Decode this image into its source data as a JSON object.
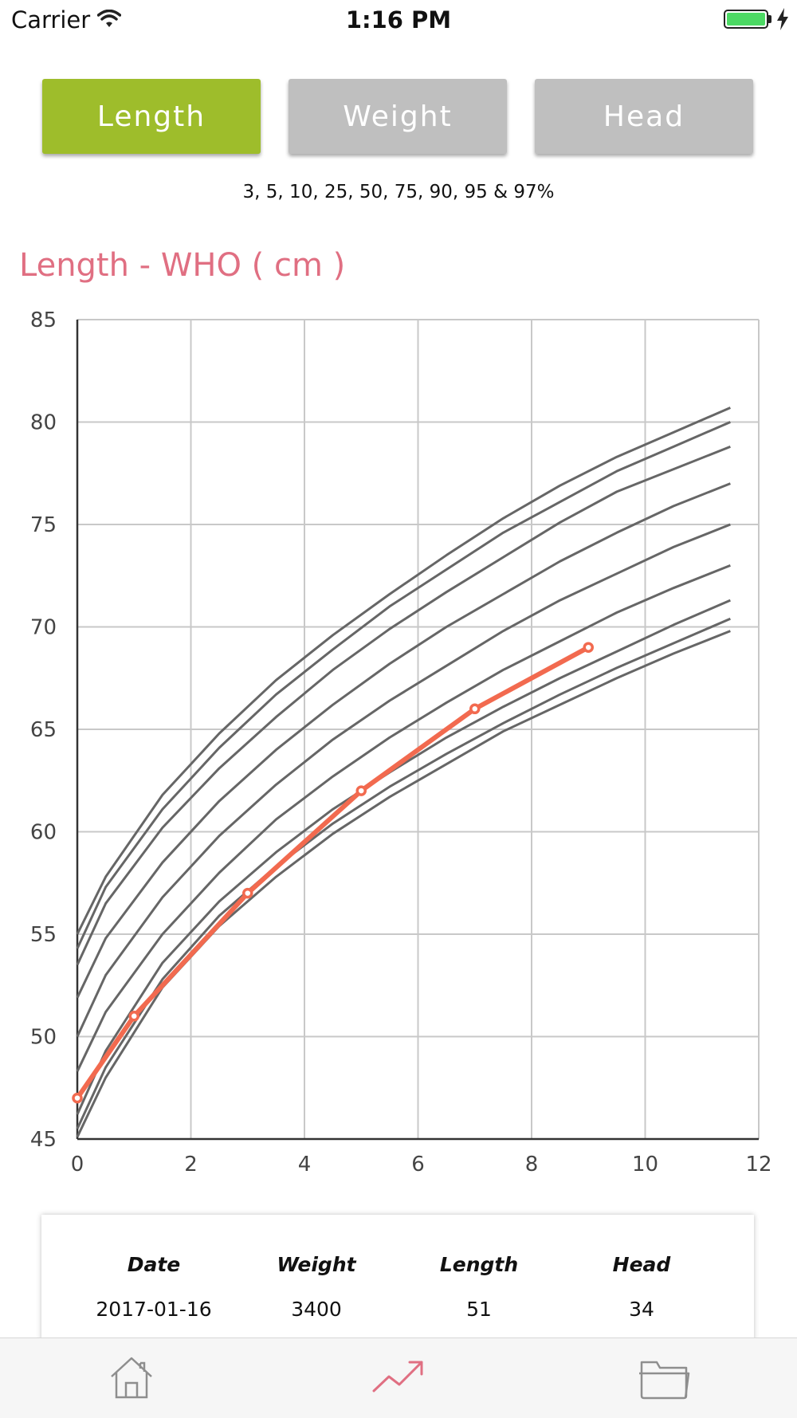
{
  "status_bar": {
    "carrier": "Carrier",
    "time": "1:16 PM"
  },
  "segments": [
    {
      "label": "Length",
      "active": true
    },
    {
      "label": "Weight",
      "active": false
    },
    {
      "label": "Head",
      "active": false
    }
  ],
  "percentiles_caption": "3, 5, 10, 25, 50, 75, 90, 95 & 97%",
  "chart_data": {
    "type": "line",
    "title": "Length - WHO ( cm )",
    "xlabel": "",
    "ylabel": "",
    "xlim": [
      0,
      12
    ],
    "ylim": [
      45,
      85
    ],
    "x_ticks": [
      0,
      2,
      4,
      6,
      8,
      10,
      12
    ],
    "y_ticks": [
      45,
      50,
      55,
      60,
      65,
      70,
      75,
      80,
      85
    ],
    "grid": true,
    "x": [
      0,
      0.5,
      1.5,
      2.5,
      3.5,
      4.5,
      5.5,
      6.5,
      7.5,
      8.5,
      9.5,
      10.5,
      11.5
    ],
    "series": [
      {
        "values": [
          45.1,
          48.0,
          52.4,
          55.4,
          57.8,
          59.9,
          61.7,
          63.3,
          64.9,
          66.2,
          67.5,
          68.7,
          69.8
        ]
      },
      {
        "values": [
          45.5,
          48.5,
          52.8,
          55.9,
          58.3,
          60.4,
          62.2,
          63.8,
          65.3,
          66.7,
          68.0,
          69.2,
          70.4
        ]
      },
      {
        "values": [
          46.2,
          49.3,
          53.6,
          56.6,
          59.0,
          61.1,
          62.9,
          64.6,
          66.1,
          67.5,
          68.8,
          70.1,
          71.3
        ]
      },
      {
        "values": [
          48.3,
          51.2,
          55.0,
          58.0,
          60.6,
          62.7,
          64.6,
          66.3,
          67.9,
          69.3,
          70.7,
          71.9,
          73.0
        ]
      },
      {
        "values": [
          50.0,
          53.0,
          56.8,
          59.8,
          62.3,
          64.5,
          66.4,
          68.1,
          69.8,
          71.3,
          72.6,
          73.9,
          75.0
        ]
      },
      {
        "values": [
          51.9,
          54.8,
          58.5,
          61.5,
          64.0,
          66.2,
          68.2,
          70.0,
          71.6,
          73.2,
          74.6,
          75.9,
          77.0
        ]
      },
      {
        "values": [
          53.5,
          56.5,
          60.2,
          63.1,
          65.6,
          67.9,
          69.9,
          71.7,
          73.4,
          75.1,
          76.6,
          77.7,
          78.8
        ]
      },
      {
        "values": [
          54.3,
          57.3,
          61.1,
          64.1,
          66.7,
          68.9,
          71.0,
          72.8,
          74.6,
          76.1,
          77.6,
          78.8,
          80.0
        ]
      },
      {
        "values": [
          55.0,
          57.8,
          61.8,
          64.8,
          67.4,
          69.6,
          71.6,
          73.5,
          75.3,
          76.9,
          78.3,
          79.5,
          80.7
        ]
      }
    ],
    "child": {
      "x": [
        0,
        1,
        3,
        5,
        7,
        9
      ],
      "values": [
        47,
        51,
        57,
        62,
        66,
        69
      ]
    },
    "colors": {
      "percentile_line": "#666666",
      "child_line": "#f26a4f",
      "grid": "#c8c8c8",
      "axis": "#333333"
    }
  },
  "table": {
    "headers": [
      "Date",
      "Weight",
      "Length",
      "Head"
    ],
    "rows": [
      [
        "2017-01-16",
        "3400",
        "51",
        "34"
      ]
    ]
  },
  "tab_bar": {
    "tabs": [
      {
        "icon": "home-icon",
        "active": false
      },
      {
        "icon": "chart-trend-icon",
        "active": true
      },
      {
        "icon": "folder-icon",
        "active": false
      }
    ],
    "active_color": "#e06f82",
    "inactive_color": "#8e8e8e"
  }
}
